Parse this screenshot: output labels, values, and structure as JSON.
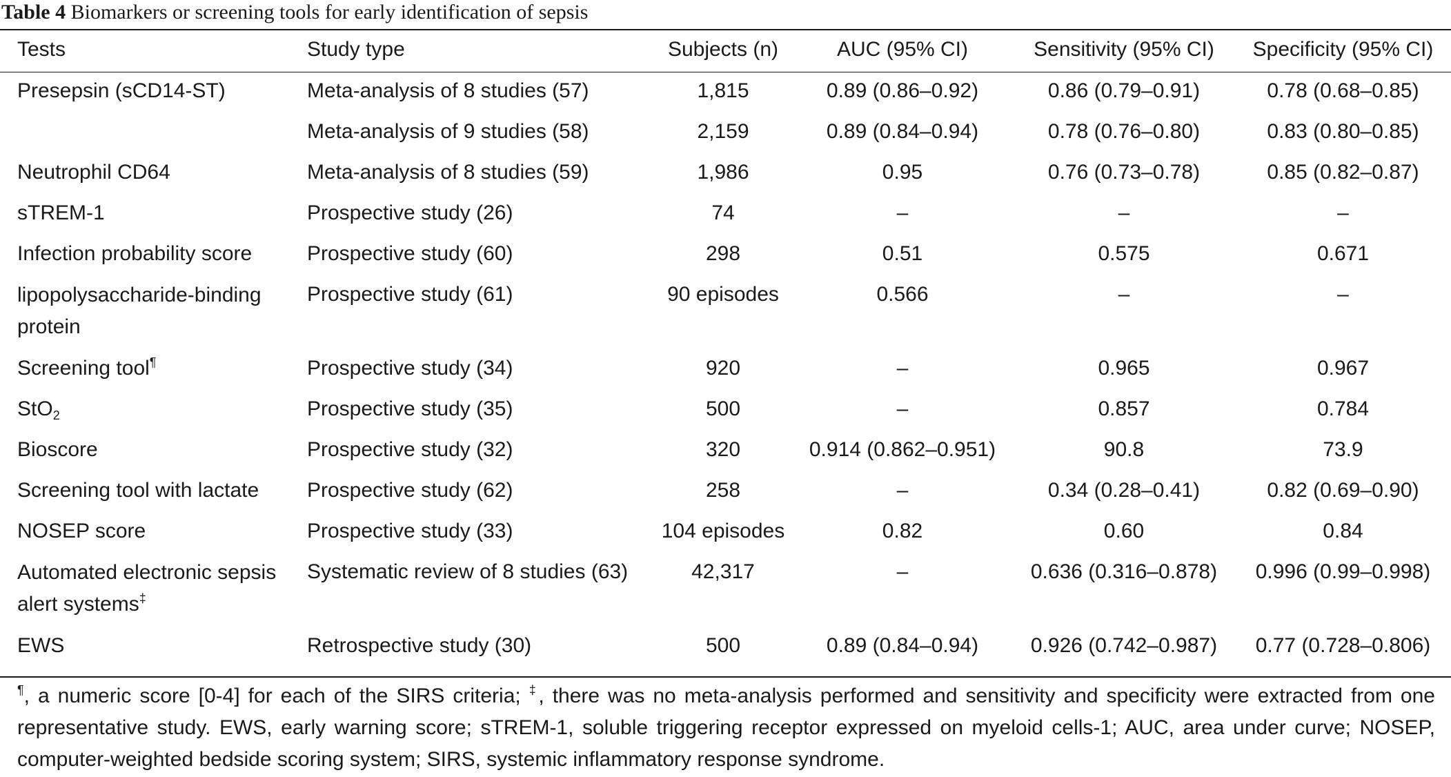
{
  "caption": {
    "label": "Table 4",
    "text": " Biomarkers or screening tools for early identification of sepsis"
  },
  "columns": {
    "tests": "Tests",
    "study_type": "Study type",
    "subjects": "Subjects (n)",
    "auc": "AUC (95% CI)",
    "sensitivity": "Sensitivity (95% CI)",
    "specificity": "Specificity (95% CI)"
  },
  "rows": [
    {
      "tests": "Presepsin (sCD14-ST)",
      "study_type": "Meta-analysis of 8 studies (57)",
      "subjects": "1,815",
      "auc": "0.89 (0.86–0.92)",
      "sensitivity": "0.86 (0.79–0.91)",
      "specificity": "0.78 (0.68–0.85)"
    },
    {
      "tests": "",
      "study_type": "Meta-analysis of 9 studies (58)",
      "subjects": "2,159",
      "auc": "0.89 (0.84–0.94)",
      "sensitivity": "0.78 (0.76–0.80)",
      "specificity": "0.83 (0.80–0.85)"
    },
    {
      "tests": "Neutrophil CD64",
      "study_type": "Meta-analysis of 8 studies (59)",
      "subjects": "1,986",
      "auc": "0.95",
      "sensitivity": "0.76 (0.73–0.78)",
      "specificity": "0.85 (0.82–0.87)"
    },
    {
      "tests": "sTREM-1",
      "study_type": "Prospective study (26)",
      "subjects": "74",
      "auc": "–",
      "sensitivity": "–",
      "specificity": "–"
    },
    {
      "tests": "Infection probability score",
      "study_type": "Prospective study (60)",
      "subjects": "298",
      "auc": "0.51",
      "sensitivity": "0.575",
      "specificity": "0.671"
    },
    {
      "tests": "lipopolysaccharide-binding protein",
      "study_type": "Prospective study (61)",
      "subjects": "90 episodes",
      "auc": "0.566",
      "sensitivity": "–",
      "specificity": "–"
    },
    {
      "tests": "Screening tool",
      "tests_sup": "¶",
      "study_type": "Prospective study (34)",
      "subjects": "920",
      "auc": "–",
      "sensitivity": "0.965",
      "specificity": "0.967"
    },
    {
      "tests": "StO",
      "tests_sub": "2",
      "study_type": "Prospective study (35)",
      "subjects": "500",
      "auc": "–",
      "sensitivity": "0.857",
      "specificity": "0.784"
    },
    {
      "tests": "Bioscore",
      "study_type": "Prospective study (32)",
      "subjects": "320",
      "auc": "0.914 (0.862–0.951)",
      "sensitivity": "90.8",
      "specificity": "73.9"
    },
    {
      "tests": "Screening tool with lactate",
      "study_type": "Prospective study (62)",
      "subjects": "258",
      "auc": "–",
      "sensitivity": "0.34 (0.28–0.41)",
      "specificity": "0.82 (0.69–0.90)"
    },
    {
      "tests": "NOSEP score",
      "study_type": "Prospective study (33)",
      "subjects": "104 episodes",
      "auc": "0.82",
      "sensitivity": "0.60",
      "specificity": "0.84"
    },
    {
      "tests": "Automated electronic sepsis alert systems",
      "tests_sup": "‡",
      "study_type": "Systematic review of 8 studies (63)",
      "subjects": "42,317",
      "auc": "–",
      "sensitivity": "0.636 (0.316–0.878)",
      "specificity": "0.996 (0.99–0.998)"
    },
    {
      "tests": "EWS",
      "study_type": "Retrospective study (30)",
      "subjects": "500",
      "auc": "0.89 (0.84–0.94)",
      "sensitivity": "0.926 (0.742–0.987)",
      "specificity": "0.77 (0.728–0.806)"
    }
  ],
  "footnote": {
    "mark1": "¶",
    "part1": ", a numeric score [0-4] for each of the SIRS criteria; ",
    "mark2": "‡",
    "part2": ", there was no meta-analysis performed and sensitivity and specificity were extracted from one representative study. EWS, early warning score; sTREM-1, soluble triggering receptor expressed on myeloid cells-1; AUC, area under curve; NOSEP, computer-weighted bedside scoring system; SIRS, systemic inflammatory response syndrome."
  }
}
